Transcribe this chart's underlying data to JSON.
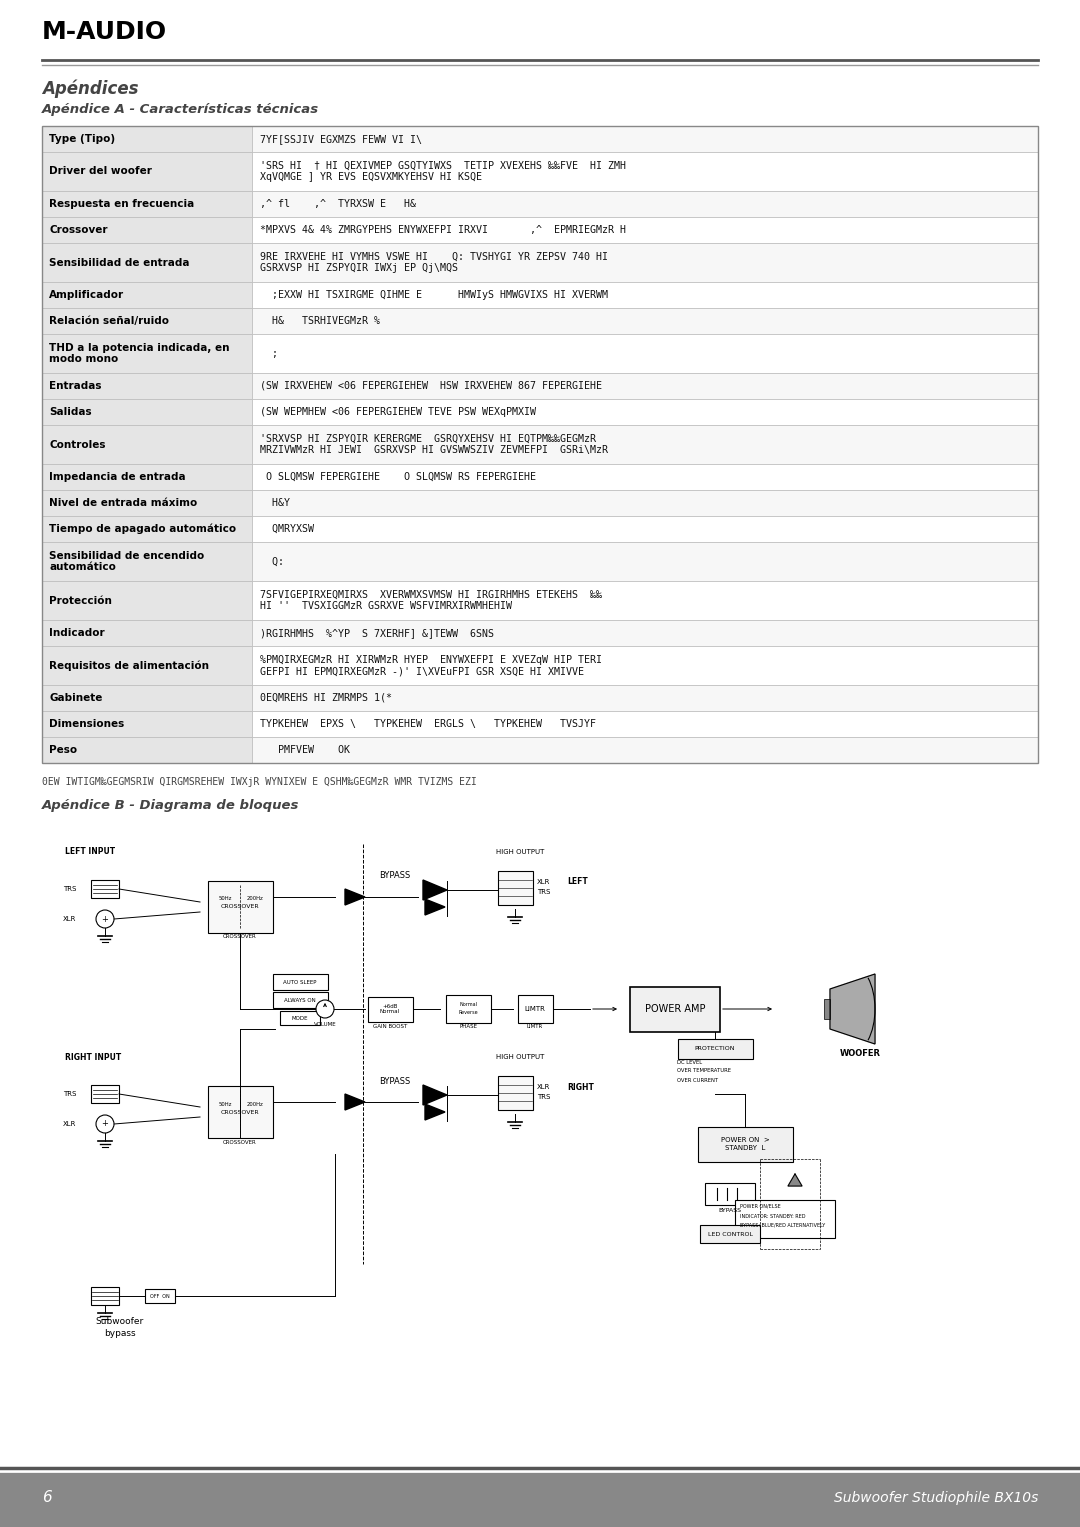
{
  "page_bg": "#ffffff",
  "header_logo": "M-AUDIO",
  "section_title": "Apéndices",
  "subsection_a": "Apéndice A - Características técnicas",
  "subsection_b": "Apéndice B - Diagrama de bloques",
  "footer_page": "6",
  "footer_text": "Subwoofer Studiophile BX10s",
  "note_text": "0EW IWTIGM‰GEGMSRIW QIRGMSREHEW IWXjR WYNIXEW E QSHM‰GEGMzR WMR TVIZMS EZI",
  "table_rows": [
    [
      "Type (Tipo)",
      "7YF[SSJIV EGXMZS FEWW VI I\\"
    ],
    [
      "Driver del woofer",
      "'SRS HI  † HI QEXIVMEP GSQTYIWXS  TETIP XVEXEHS ‰‰FVE  HI ZMH\nXqVQMGE ] YR EVS EQSVXMKYEHSV HI KSQE"
    ],
    [
      "Respuesta en frecuencia",
      ",^ fl    ,^  TYRXSW E   H&"
    ],
    [
      "Crossover",
      "*MPXVS 4& 4% ZMRGYPEHS ENYWXEFPI IRXVI       ,^  EPMRIEGMzR H"
    ],
    [
      "Sensibilidad de entrada",
      "9RE IRXVEHE HI VYMHS VSWE HI    Q: TVSHYGI YR ZEPSV 740 HI\nGSRXVSP HI ZSPYQIR IWXj EP Qj\\MQS"
    ],
    [
      "Amplificador",
      "  ;EXXW HI TSXIRGME QIHME E      HMWIyS HMWGVIXS HI XVERWM"
    ],
    [
      "Relación señal/ruido",
      "  H&   TSRHIVEGMzR %"
    ],
    [
      "THD a la potencia indicada, en\nmodo mono",
      "  ;"
    ],
    [
      "Entradas",
      "(SW IRXVEHEW <06 FEPERGIEHEW  HSW IRXVEHEW 867 FEPERGIEHE"
    ],
    [
      "Salidas",
      "(SW WEPMHEW <06 FEPERGIEHEW TEVE PSW WEXqPMXIW"
    ],
    [
      "Controles",
      "'SRXVSP HI ZSPYQIR KERERGME  GSRQYXEHSV HI EQTPM‰‰GEGMzR\nMRZIVWMzR HI JEWI  GSRXVSP HI GVSWWSZIV ZEVMEFPI  GSRi\\MzR"
    ],
    [
      "Impedancia de entrada",
      " O SLQMSW FEPERGIEHE    O SLQMSW RS FEPERGIEHE"
    ],
    [
      "Nivel de entrada máximo",
      "  H&Y"
    ],
    [
      "Tiempo de apagado automático",
      "  QMRYXSW"
    ],
    [
      "Sensibilidad de encendido\nautomático",
      "  Q:"
    ],
    [
      "Protección",
      "7SFVIGEPIRXEQMIRXS  XVERWMXSVMSW HI IRGIRHMHS ETEKEHS  ‰‰\nHI ''  TVSXIGGMzR GSRXVE WSFVIMRXIRWMHEHIW"
    ],
    [
      "Indicador",
      ")RGIRHMHS  %^YP  S 7XERHF] &]TEWW  6SNS"
    ],
    [
      "Requisitos de alimentación",
      "%PMQIRXEGMzR HI XIRWMzR HYEP  ENYWXEFPI E XVEZqW HIP TERI\nGEFPI HI EPMQIRXEGMzR -)' I\\XVEuFPI GSR XSQE HI XMIVVE"
    ],
    [
      "Gabinete",
      "0EQMREHS HI ZMRMPS 1(*"
    ],
    [
      "Dimensiones",
      "TYPKEHEW  EPXS \\   TYPKEHEW  ERGLS \\   TYPKEHEW   TVSJYF"
    ],
    [
      "Peso",
      "   PMFVEW    OK"
    ]
  ]
}
